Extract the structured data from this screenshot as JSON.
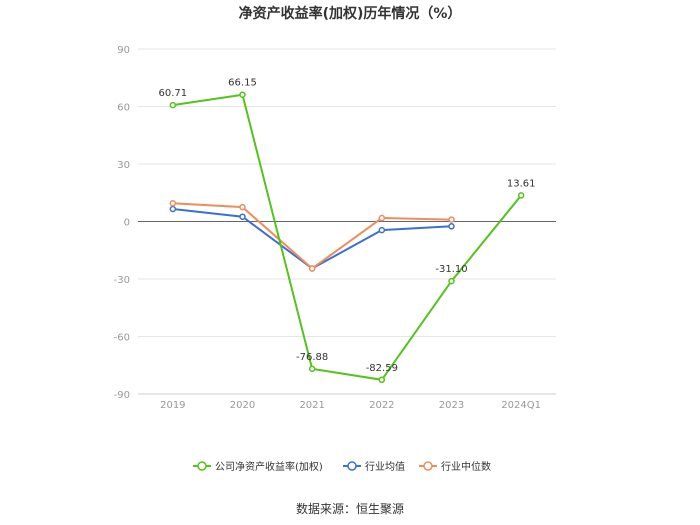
{
  "chart_data": {
    "type": "line",
    "title": "净资产收益率(加权)历年情况（%）",
    "categories": [
      "2019",
      "2020",
      "2021",
      "2022",
      "2023",
      "2024Q1"
    ],
    "yticks": [
      90,
      60,
      30,
      0,
      -30,
      -60,
      -90
    ],
    "ylim": [
      -90,
      90
    ],
    "grid": true,
    "legend_position": "bottom",
    "series": [
      {
        "name": "公司净资产收益率(加权)",
        "color": "#52c41a",
        "values": [
          60.71,
          66.15,
          -76.88,
          -82.59,
          -31.1,
          13.61
        ],
        "labels": [
          "60.71",
          "66.15",
          "-76.88",
          "-82.59",
          "-31.10",
          "13.61"
        ]
      },
      {
        "name": "行业均值",
        "color": "#3b6fd6",
        "values": [
          6.5,
          2.5,
          -24.5,
          -4.5,
          -2.5,
          null
        ]
      },
      {
        "name": "行业中位数",
        "color": "#f08c5a",
        "values": [
          9.5,
          7.5,
          -24.5,
          1.8,
          1.0,
          null
        ]
      }
    ]
  },
  "source": "数据来源：恒生聚源"
}
